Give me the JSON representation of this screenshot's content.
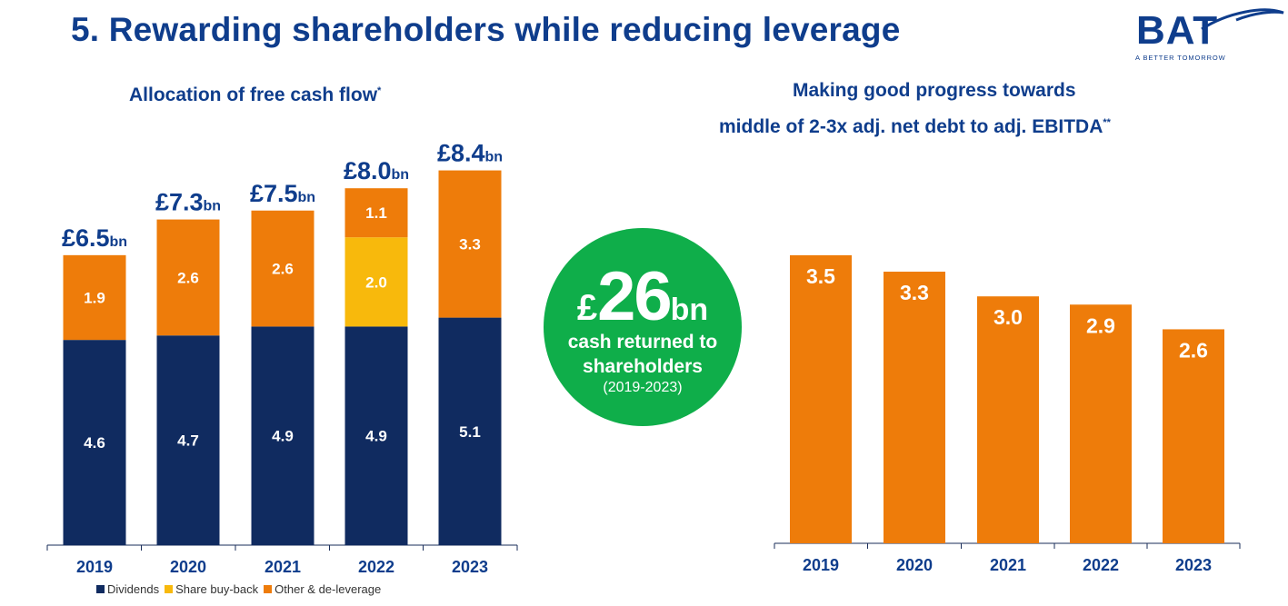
{
  "header": {
    "title": "5. Rewarding shareholders while reducing leverage",
    "logo_text": "BAT",
    "logo_tagline": "A BETTER TOMORROW"
  },
  "left_chart": {
    "subtitle": "Allocation of free cash flow",
    "subtitle_marker": "*"
  },
  "right_chart": {
    "subtitle_line1": "Making good progress towards",
    "subtitle_line2": "middle of 2-3x adj. net debt to adj. EBITDA",
    "subtitle_marker": "**"
  },
  "callout": {
    "currency": "£",
    "amount": "26",
    "unit": "bn",
    "line1": "cash returned to",
    "line2": "shareholders",
    "period": "(2019-2023)",
    "color": "#0fae4a"
  },
  "legend": [
    {
      "label": "Dividends",
      "color": "#102b60"
    },
    {
      "label": "Share buy-back",
      "color": "#f8b90c"
    },
    {
      "label": "Other & de-leverage",
      "color": "#ee7c0a"
    }
  ],
  "chart_data": [
    {
      "type": "bar",
      "stacked": true,
      "title": "Allocation of free cash flow",
      "categories": [
        "2019",
        "2020",
        "2021",
        "2022",
        "2023"
      ],
      "series": [
        {
          "name": "Dividends",
          "values": [
            4.6,
            4.7,
            4.9,
            4.9,
            5.1
          ],
          "color": "#102b60"
        },
        {
          "name": "Share buy-back",
          "values": [
            0,
            0,
            0,
            2.0,
            0
          ],
          "color": "#f8b90c"
        },
        {
          "name": "Other & de-leverage",
          "values": [
            1.9,
            2.6,
            2.6,
            1.1,
            3.3
          ],
          "color": "#ee7c0a"
        }
      ],
      "totals": [
        {
          "value": "£6.5",
          "unit": "bn"
        },
        {
          "value": "£7.3",
          "unit": "bn"
        },
        {
          "value": "£7.5",
          "unit": "bn"
        },
        {
          "value": "£8.0",
          "unit": "bn"
        },
        {
          "value": "£8.4",
          "unit": "bn"
        }
      ],
      "ylim": [
        0,
        8.4
      ],
      "legend_position": "bottom"
    },
    {
      "type": "bar",
      "title": "Making good progress towards middle of 2-3x adj. net debt to adj. EBITDA",
      "categories": [
        "2019",
        "2020",
        "2021",
        "2022",
        "2023"
      ],
      "values": [
        3.5,
        3.3,
        3.0,
        2.9,
        2.6
      ],
      "labels": [
        "3.5",
        "3.3",
        "3.0",
        "2.9",
        "2.6"
      ],
      "color": "#ee7c0a",
      "ylim": [
        0,
        3.5
      ]
    }
  ]
}
